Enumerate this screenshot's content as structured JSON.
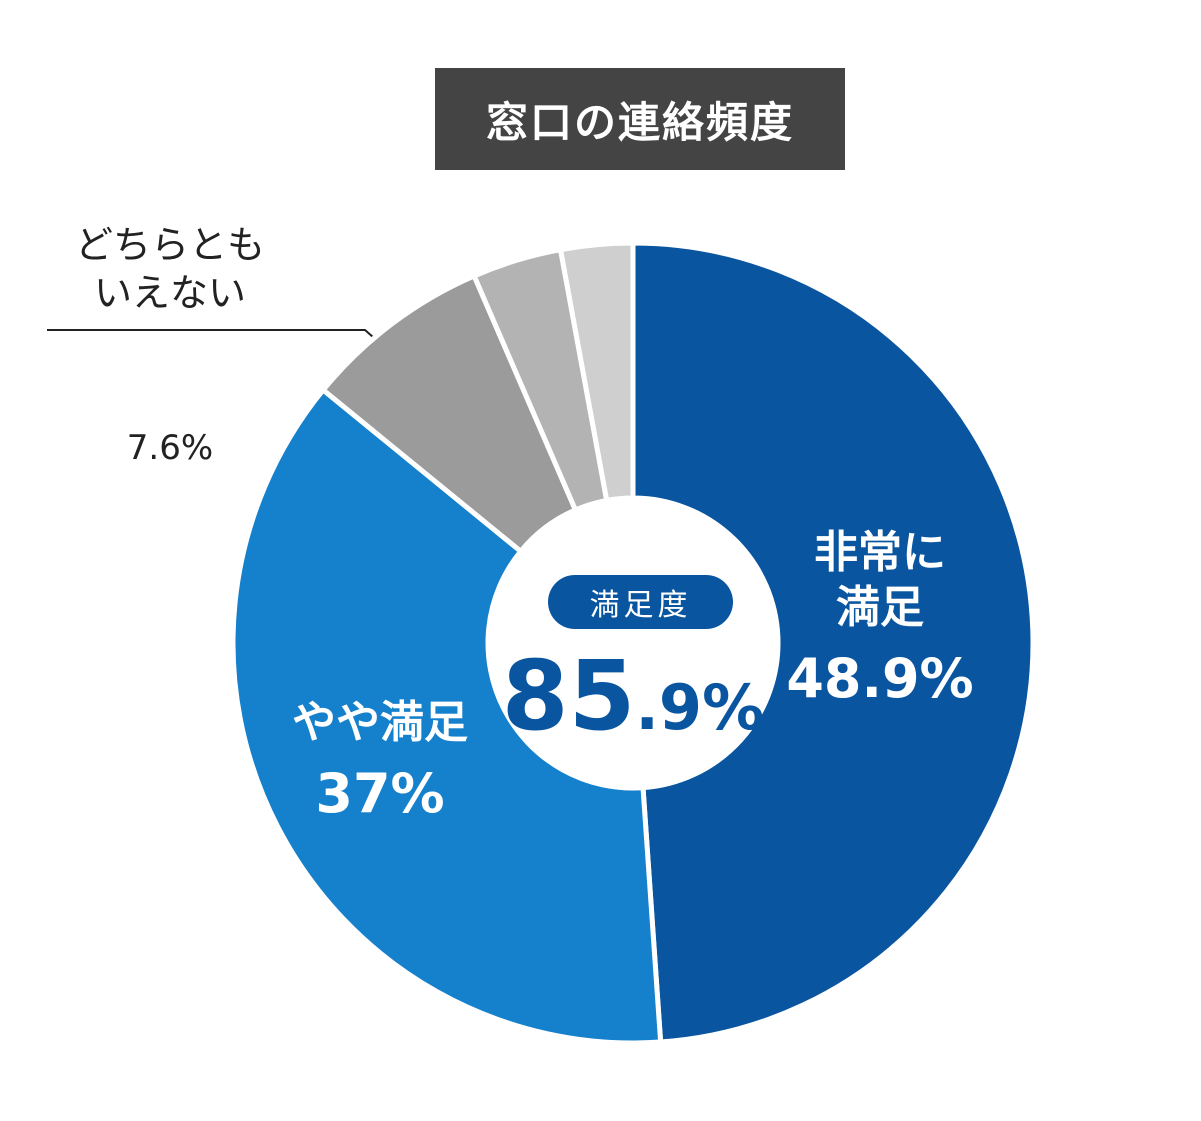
{
  "chart_data": {
    "type": "pie",
    "title": "窓口の連絡頻度",
    "categories": [
      "非常に満足",
      "やや満足",
      "どちらともいえない",
      null,
      null
    ],
    "values": [
      48.9,
      37,
      7.6,
      3.6,
      2.9
    ],
    "value_labels": [
      "48.9%",
      "37%",
      "7.6%",
      null,
      null
    ],
    "colors": [
      "#0a55a0",
      "#1580cc",
      "#9b9b9b",
      "#b3b3b3",
      "#cfcfcf"
    ],
    "center": {
      "label": "満足度",
      "value": 85.9,
      "value_label": "85.9%"
    }
  }
}
